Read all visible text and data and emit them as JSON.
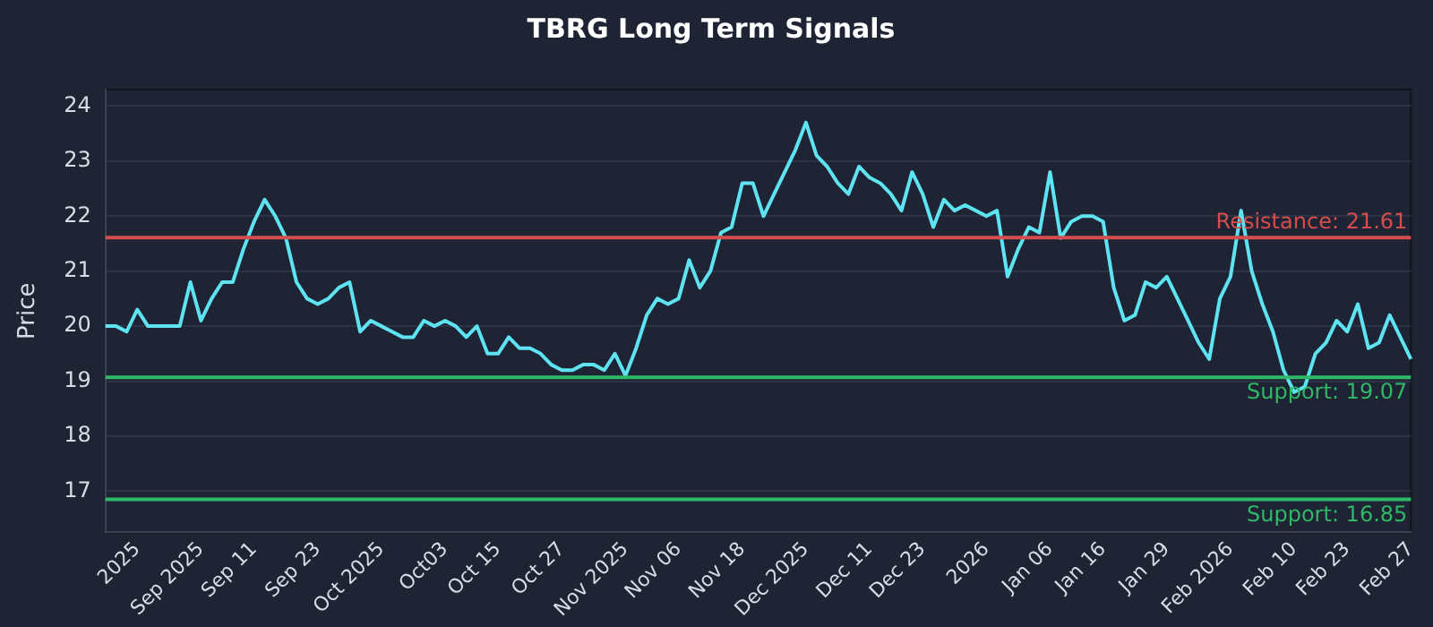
{
  "chart_data": {
    "type": "line",
    "title": "TBRG Long Term Signals",
    "ylabel": "Price",
    "categories": [
      null,
      null,
      null,
      "2025",
      null,
      null,
      null,
      null,
      null,
      "Sep 2025",
      null,
      null,
      null,
      null,
      "Sep 11",
      null,
      null,
      null,
      null,
      null,
      "Sep 23",
      null,
      null,
      null,
      null,
      null,
      "Oct 2025",
      null,
      null,
      null,
      null,
      null,
      "Oct03",
      null,
      null,
      null,
      null,
      "Oct 15",
      null,
      null,
      null,
      null,
      null,
      "Oct 27",
      null,
      null,
      null,
      null,
      null,
      "Nov 2025",
      null,
      null,
      null,
      null,
      "Nov 06",
      null,
      null,
      null,
      null,
      null,
      "Nov 18",
      null,
      null,
      null,
      null,
      null,
      "Dec 2025",
      null,
      null,
      null,
      null,
      null,
      "Dec 11",
      null,
      null,
      null,
      null,
      "Dec 23",
      null,
      null,
      null,
      null,
      null,
      "2026",
      null,
      null,
      null,
      null,
      null,
      "Jan 06",
      null,
      null,
      null,
      null,
      "Jan 16",
      null,
      null,
      null,
      null,
      null,
      "Jan 29",
      null,
      null,
      null,
      null,
      null,
      "Feb 2026",
      null,
      null,
      null,
      null,
      null,
      "Feb 10",
      null,
      null,
      null,
      null,
      "Feb 23",
      null,
      null,
      null,
      null,
      null,
      "Feb 27"
    ],
    "series": [
      {
        "color": "#5ee3f2",
        "values": [
          20.0,
          20.0,
          19.9,
          20.3,
          20.0,
          20.0,
          20.0,
          20.0,
          20.8,
          20.1,
          20.5,
          20.8,
          20.8,
          21.4,
          21.9,
          22.3,
          22.0,
          21.6,
          20.8,
          20.5,
          20.4,
          20.5,
          20.7,
          20.8,
          19.9,
          20.1,
          20.0,
          19.9,
          19.8,
          19.8,
          20.1,
          20.0,
          20.1,
          20.0,
          19.8,
          20.0,
          19.5,
          19.5,
          19.8,
          19.6,
          19.6,
          19.5,
          19.3,
          19.2,
          19.2,
          19.3,
          19.3,
          19.2,
          19.5,
          19.1,
          19.6,
          20.2,
          20.5,
          20.4,
          20.5,
          21.2,
          20.7,
          21.0,
          21.7,
          21.8,
          22.6,
          22.6,
          22.0,
          22.4,
          22.8,
          23.2,
          23.7,
          23.1,
          22.9,
          22.6,
          22.4,
          22.9,
          22.7,
          22.6,
          22.4,
          22.1,
          22.8,
          22.4,
          21.8,
          22.3,
          22.1,
          22.2,
          22.1,
          22.0,
          22.1,
          20.9,
          21.4,
          21.8,
          21.7,
          22.8,
          21.6,
          21.9,
          22.0,
          22.0,
          21.9,
          20.7,
          20.1,
          20.2,
          20.8,
          20.7,
          20.9,
          20.5,
          20.1,
          19.7,
          19.4,
          20.5,
          20.9,
          22.1,
          21.0,
          20.4,
          19.9,
          19.2,
          18.8,
          18.9,
          19.5,
          19.7,
          20.1,
          19.9,
          20.4,
          19.6,
          19.7,
          20.2,
          19.8,
          19.4
        ]
      }
    ],
    "ylim": [
      16.25,
      24.3
    ],
    "yticks": [
      17,
      18,
      19,
      20,
      21,
      22,
      23,
      24
    ],
    "grid": "y",
    "ref_lines": [
      {
        "axis": "y",
        "value": 21.61,
        "label": "Resistance: 21.61",
        "color": "#d64d4d"
      },
      {
        "axis": "y",
        "value": 19.07,
        "label": "Support: 19.07",
        "color": "#2fb866"
      },
      {
        "axis": "y",
        "value": 16.85,
        "label": "Support: 16.85",
        "color": "#2fb866"
      }
    ]
  }
}
